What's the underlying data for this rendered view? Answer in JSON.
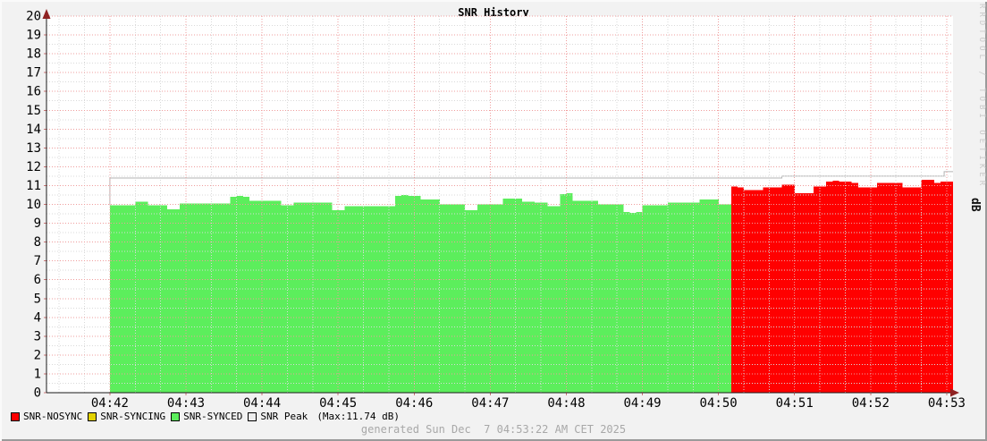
{
  "title": "SNR History",
  "watermark": "RRDTOOL / TOBI OETIKER",
  "y_axis_unit": "dB",
  "footer": "generated Sun Dec  7 04:53:22 AM CET 2025",
  "legend": [
    {
      "label": "SNR-NOSYNC",
      "color": "#ff0000"
    },
    {
      "label": "SNR-SYNCING",
      "color": "#e3d200"
    },
    {
      "label": "SNR-SYNCED",
      "color": "#5cee5c"
    },
    {
      "label": "SNR Peak",
      "color": "#ededed",
      "note": "(Max:11.74 dB)"
    }
  ],
  "chart_data": {
    "type": "area",
    "title": "SNR History",
    "ylabel": "dB",
    "xlabel": "",
    "ylim": [
      0,
      20
    ],
    "y_ticks": [
      0,
      1,
      2,
      3,
      4,
      5,
      6,
      7,
      8,
      9,
      10,
      11,
      12,
      13,
      14,
      15,
      16,
      17,
      18,
      19,
      20
    ],
    "x_ticks": [
      "04:42",
      "04:43",
      "04:44",
      "04:45",
      "04:46",
      "04:47",
      "04:48",
      "04:49",
      "04:50",
      "04:51",
      "04:52",
      "04:53"
    ],
    "x_start": "04:41:10",
    "x_end": "04:53:05",
    "step_seconds": 5,
    "legend_position": "bottom-left",
    "grid": {
      "major_color": "#ef9c9c",
      "minor_color": "#d9d9d9",
      "tick_color": "#cc7777",
      "x_major_seconds": 60,
      "x_minor_seconds": 20,
      "y_major": 1,
      "y_minor": 0.5
    },
    "series": [
      {
        "name": "SNR-SYNCED",
        "color": "#5cee5c",
        "start": "04:42:00",
        "values": [
          9.95,
          9.95,
          9.95,
          9.95,
          10.15,
          10.15,
          9.95,
          9.95,
          9.95,
          9.75,
          9.75,
          10.05,
          10.05,
          10.05,
          10.05,
          10.05,
          10.05,
          10.05,
          10.05,
          10.4,
          10.45,
          10.4,
          10.2,
          10.2,
          10.2,
          10.2,
          10.2,
          9.95,
          9.95,
          10.1,
          10.1,
          10.1,
          10.1,
          10.1,
          10.1,
          9.7,
          9.7,
          9.9,
          9.9,
          9.9,
          9.9,
          9.9,
          9.9,
          9.9,
          9.9,
          10.45,
          10.5,
          10.45,
          10.45,
          10.25,
          10.25,
          10.25,
          10.0,
          10.0,
          10.0,
          10.0,
          9.7,
          9.7,
          10.0,
          10.0,
          10.0,
          10.0,
          10.3,
          10.3,
          10.3,
          10.15,
          10.15,
          10.1,
          10.1,
          9.9,
          9.9,
          10.55,
          10.6,
          10.2,
          10.2,
          10.2,
          10.2,
          10.0,
          10.0,
          10.0,
          10.0,
          9.6,
          9.55,
          9.6,
          9.95,
          9.95,
          9.95,
          9.95,
          10.1,
          10.1,
          10.1,
          10.1,
          10.1,
          10.25,
          10.25,
          10.25,
          10.0,
          10.0
        ]
      },
      {
        "name": "SNR-NOSYNC",
        "color": "#ff0000",
        "start": "04:50:10",
        "values": [
          10.95,
          10.9,
          10.75,
          10.75,
          10.75,
          10.9,
          10.9,
          10.9,
          11.05,
          11.05,
          10.6,
          10.6,
          10.6,
          10.95,
          10.95,
          11.2,
          11.25,
          11.2,
          11.2,
          11.15,
          10.9,
          10.9,
          10.9,
          11.15,
          11.15,
          11.15,
          11.15,
          10.9,
          10.9,
          10.9,
          11.3,
          11.3,
          11.15,
          11.2,
          11.2
        ]
      },
      {
        "name": "SNR-SYNCING",
        "color": "#e3d200",
        "start": null,
        "values": []
      },
      {
        "name": "SNR Peak",
        "type": "line",
        "color": "#b3b3b3",
        "max": 11.74,
        "segments": [
          {
            "from": "04:42:00",
            "to": "04:50:50",
            "value": 11.4
          },
          {
            "from": "04:50:50",
            "to": "04:52:58",
            "value": 11.5
          },
          {
            "from": "04:52:58",
            "to": "04:53:05",
            "value": 11.74
          }
        ]
      }
    ]
  }
}
